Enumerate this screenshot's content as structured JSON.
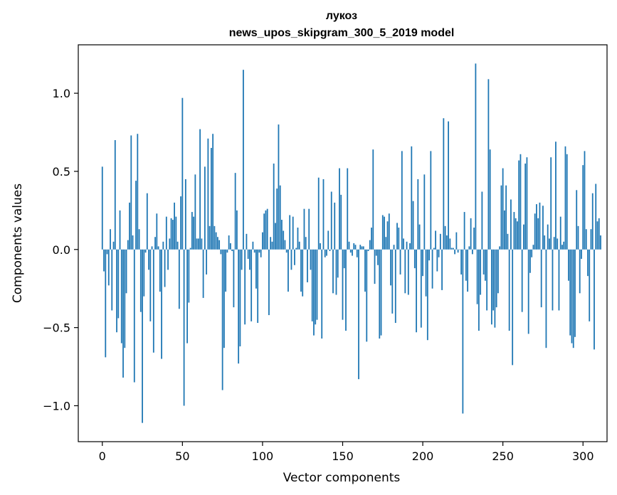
{
  "chart_data": {
    "type": "bar",
    "title_line1": "лукоз",
    "title_line2": "news_upos_skipgram_300_5_2019 model",
    "xlabel": "Vector components",
    "ylabel": "Components values",
    "xlim": [
      -15,
      315
    ],
    "ylim": [
      -1.23,
      1.31
    ],
    "x_ticks": [
      0,
      50,
      100,
      150,
      200,
      250,
      300
    ],
    "x_tick_labels": [
      "0",
      "50",
      "100",
      "150",
      "200",
      "250",
      "300"
    ],
    "y_ticks": [
      1.0,
      0.5,
      0.0,
      -0.5,
      -1.0
    ],
    "y_tick_labels": [
      "1.0",
      "0.5",
      "0.0",
      "−0.5",
      "−1.0"
    ],
    "bar_color": "#1f77b4",
    "values": [
      0.53,
      -0.14,
      -0.69,
      -0.03,
      -0.23,
      0.13,
      -0.39,
      0.05,
      0.7,
      -0.53,
      -0.44,
      0.25,
      -0.6,
      -0.82,
      -0.63,
      -0.28,
      0.06,
      0.3,
      0.73,
      0.09,
      -0.85,
      0.44,
      0.74,
      0.13,
      -0.4,
      -1.11,
      -0.3,
      -0.02,
      0.36,
      -0.13,
      -0.46,
      0.02,
      -0.66,
      0.08,
      0.23,
      0.02,
      -0.27,
      -0.7,
      0.05,
      -0.24,
      0.21,
      -0.13,
      0.07,
      0.2,
      0.19,
      0.3,
      0.21,
      0.05,
      -0.38,
      0.34,
      0.97,
      -1.0,
      0.45,
      -0.6,
      -0.34,
      0.01,
      0.24,
      0.21,
      0.48,
      0.07,
      0.07,
      0.77,
      0.07,
      -0.31,
      0.53,
      -0.16,
      0.71,
      0.15,
      0.65,
      0.74,
      0.15,
      0.11,
      0.08,
      0.06,
      -0.03,
      -0.9,
      -0.63,
      -0.27,
      -0.02,
      0.09,
      0.04,
      -0.01,
      -0.37,
      0.49,
      0.25,
      -0.73,
      -0.62,
      -0.13,
      1.15,
      -0.48,
      0.1,
      -0.06,
      -0.13,
      -0.46,
      0.05,
      -0.02,
      -0.25,
      -0.47,
      -0.02,
      -0.05,
      0.11,
      0.23,
      0.25,
      0.26,
      -0.42,
      0.08,
      0.05,
      0.55,
      0.17,
      0.39,
      0.8,
      0.41,
      0.19,
      0.12,
      0.06,
      -0.02,
      -0.27,
      0.22,
      -0.13,
      0.21,
      -0.1,
      0.01,
      0.14,
      0.05,
      -0.27,
      -0.3,
      0.26,
      0.08,
      -0.21,
      0.26,
      -0.13,
      -0.46,
      -0.55,
      -0.48,
      -0.45,
      0.46,
      0.04,
      -0.57,
      0.45,
      -0.05,
      -0.04,
      0.12,
      -0.01,
      0.37,
      -0.28,
      0.3,
      -0.29,
      -0.18,
      0.52,
      0.35,
      -0.45,
      -0.12,
      -0.52,
      0.52,
      0.05,
      -0.02,
      -0.04,
      0.04,
      0.03,
      -0.05,
      -0.83,
      0.03,
      0.02,
      0.02,
      -0.27,
      -0.59,
      -0.01,
      0.06,
      0.14,
      0.64,
      -0.22,
      -0.04,
      -0.1,
      -0.57,
      -0.55,
      0.22,
      0.21,
      0.08,
      0.18,
      0.23,
      -0.23,
      -0.41,
      0.03,
      -0.47,
      0.17,
      0.14,
      -0.16,
      0.63,
      0.07,
      -0.28,
      0.05,
      -0.29,
      0.04,
      0.66,
      0.31,
      -0.12,
      -0.53,
      0.45,
      0.16,
      -0.5,
      -0.17,
      0.48,
      -0.3,
      -0.58,
      -0.07,
      0.63,
      -0.25,
      0.01,
      0.12,
      -0.14,
      -0.05,
      0.1,
      -0.26,
      0.84,
      0.15,
      0.09,
      0.82,
      0.07,
      0.01,
      0.01,
      -0.03,
      0.11,
      -0.02,
      0.0,
      -0.16,
      -1.05,
      0.24,
      -0.2,
      -0.27,
      0.02,
      0.2,
      -0.03,
      0.14,
      1.19,
      -0.35,
      -0.52,
      -0.29,
      0.37,
      -0.16,
      -0.2,
      -0.39,
      1.09,
      0.64,
      -0.48,
      -0.39,
      -0.5,
      -0.37,
      -0.28,
      0.02,
      0.41,
      0.52,
      0.25,
      0.41,
      0.1,
      -0.52,
      0.32,
      -0.74,
      0.24,
      0.2,
      0.18,
      0.57,
      0.61,
      -0.4,
      0.16,
      0.55,
      0.59,
      -0.54,
      -0.15,
      -0.05,
      0.03,
      0.23,
      0.29,
      0.2,
      0.3,
      -0.37,
      0.28,
      0.09,
      -0.63,
      0.16,
      0.07,
      0.59,
      -0.39,
      0.08,
      0.69,
      0.07,
      -0.39,
      0.21,
      0.03,
      0.05,
      0.66,
      0.61,
      -0.2,
      -0.55,
      -0.6,
      -0.63,
      -0.56,
      0.38,
      0.15,
      -0.28,
      -0.06,
      0.54,
      0.63,
      0.13,
      -0.17,
      -0.46,
      0.13,
      0.36,
      -0.64,
      0.42,
      0.18,
      0.2,
      0.09
    ]
  }
}
